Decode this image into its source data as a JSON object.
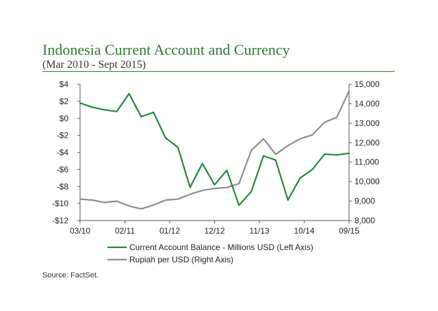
{
  "header": {
    "title": "Indonesia Current Account and Currency",
    "subtitle": "(Mar 2010 - Sept 2015)"
  },
  "footer": {
    "source": "Source: FactSet."
  },
  "colors": {
    "title": "#2e7d32",
    "current_account": "#1e8a3a",
    "rupiah": "#8c8c8c",
    "axis": "#555555"
  },
  "chart_data": {
    "type": "line",
    "title": "Indonesia Current Account and Currency",
    "subtitle": "(Mar 2010 - Sept 2015)",
    "x_tick_labels": [
      "03/10",
      "02/11",
      "01/12",
      "12/12",
      "11/13",
      "10/14",
      "09/15"
    ],
    "x_range": [
      "03/10",
      "09/15"
    ],
    "y_left": {
      "range": [
        -12,
        4
      ],
      "tick_labels": [
        "$4",
        "$2",
        "$0",
        "-$2",
        "-$4",
        "-$6",
        "-$8",
        "-$10",
        "-$12"
      ],
      "tick_values": [
        4,
        2,
        0,
        -2,
        -4,
        -6,
        -8,
        -10,
        -12
      ]
    },
    "y_right": {
      "range": [
        8000,
        15000
      ],
      "tick_labels": [
        "15,000",
        "14,000",
        "13,000",
        "12,000",
        "11,000",
        "10,000",
        "9,000",
        "8,000"
      ],
      "tick_values": [
        15000,
        14000,
        13000,
        12000,
        11000,
        10000,
        9000,
        8000
      ]
    },
    "grid": false,
    "legend_position": "bottom",
    "series": [
      {
        "name": "Current Account Balance - Millions USD (Left Axis)",
        "axis": "left",
        "color": "#1e8a3a",
        "points": [
          {
            "x": "2010-03",
            "y": 1.8
          },
          {
            "x": "2010-06",
            "y": 1.3
          },
          {
            "x": "2010-09",
            "y": 1.0
          },
          {
            "x": "2010-12",
            "y": 0.8
          },
          {
            "x": "2011-03",
            "y": 2.9
          },
          {
            "x": "2011-06",
            "y": 0.2
          },
          {
            "x": "2011-09",
            "y": 0.7
          },
          {
            "x": "2011-12",
            "y": -2.3
          },
          {
            "x": "2012-03",
            "y": -3.4
          },
          {
            "x": "2012-06",
            "y": -8.1
          },
          {
            "x": "2012-09",
            "y": -5.3
          },
          {
            "x": "2012-12",
            "y": -7.8
          },
          {
            "x": "2013-03",
            "y": -6.1
          },
          {
            "x": "2013-06",
            "y": -10.2
          },
          {
            "x": "2013-09",
            "y": -8.6
          },
          {
            "x": "2013-12",
            "y": -4.4
          },
          {
            "x": "2014-03",
            "y": -4.9
          },
          {
            "x": "2014-06",
            "y": -9.6
          },
          {
            "x": "2014-09",
            "y": -7.0
          },
          {
            "x": "2014-12",
            "y": -6.0
          },
          {
            "x": "2015-03",
            "y": -4.2
          },
          {
            "x": "2015-06",
            "y": -4.3
          },
          {
            "x": "2015-09",
            "y": -4.1
          }
        ]
      },
      {
        "name": "Rupiah per USD (Right Axis)",
        "axis": "right",
        "color": "#8c8c8c",
        "points": [
          {
            "x": "2010-03",
            "y": 9100
          },
          {
            "x": "2010-06",
            "y": 9050
          },
          {
            "x": "2010-09",
            "y": 8930
          },
          {
            "x": "2010-12",
            "y": 9000
          },
          {
            "x": "2011-03",
            "y": 8750
          },
          {
            "x": "2011-06",
            "y": 8600
          },
          {
            "x": "2011-09",
            "y": 8800
          },
          {
            "x": "2011-12",
            "y": 9050
          },
          {
            "x": "2012-03",
            "y": 9100
          },
          {
            "x": "2012-06",
            "y": 9350
          },
          {
            "x": "2012-09",
            "y": 9550
          },
          {
            "x": "2012-12",
            "y": 9650
          },
          {
            "x": "2013-03",
            "y": 9700
          },
          {
            "x": "2013-06",
            "y": 9900
          },
          {
            "x": "2013-09",
            "y": 11600
          },
          {
            "x": "2013-12",
            "y": 12200
          },
          {
            "x": "2014-03",
            "y": 11400
          },
          {
            "x": "2014-06",
            "y": 11850
          },
          {
            "x": "2014-09",
            "y": 12200
          },
          {
            "x": "2014-12",
            "y": 12400
          },
          {
            "x": "2015-03",
            "y": 13050
          },
          {
            "x": "2015-06",
            "y": 13300
          },
          {
            "x": "2015-09",
            "y": 14650
          }
        ]
      }
    ]
  }
}
